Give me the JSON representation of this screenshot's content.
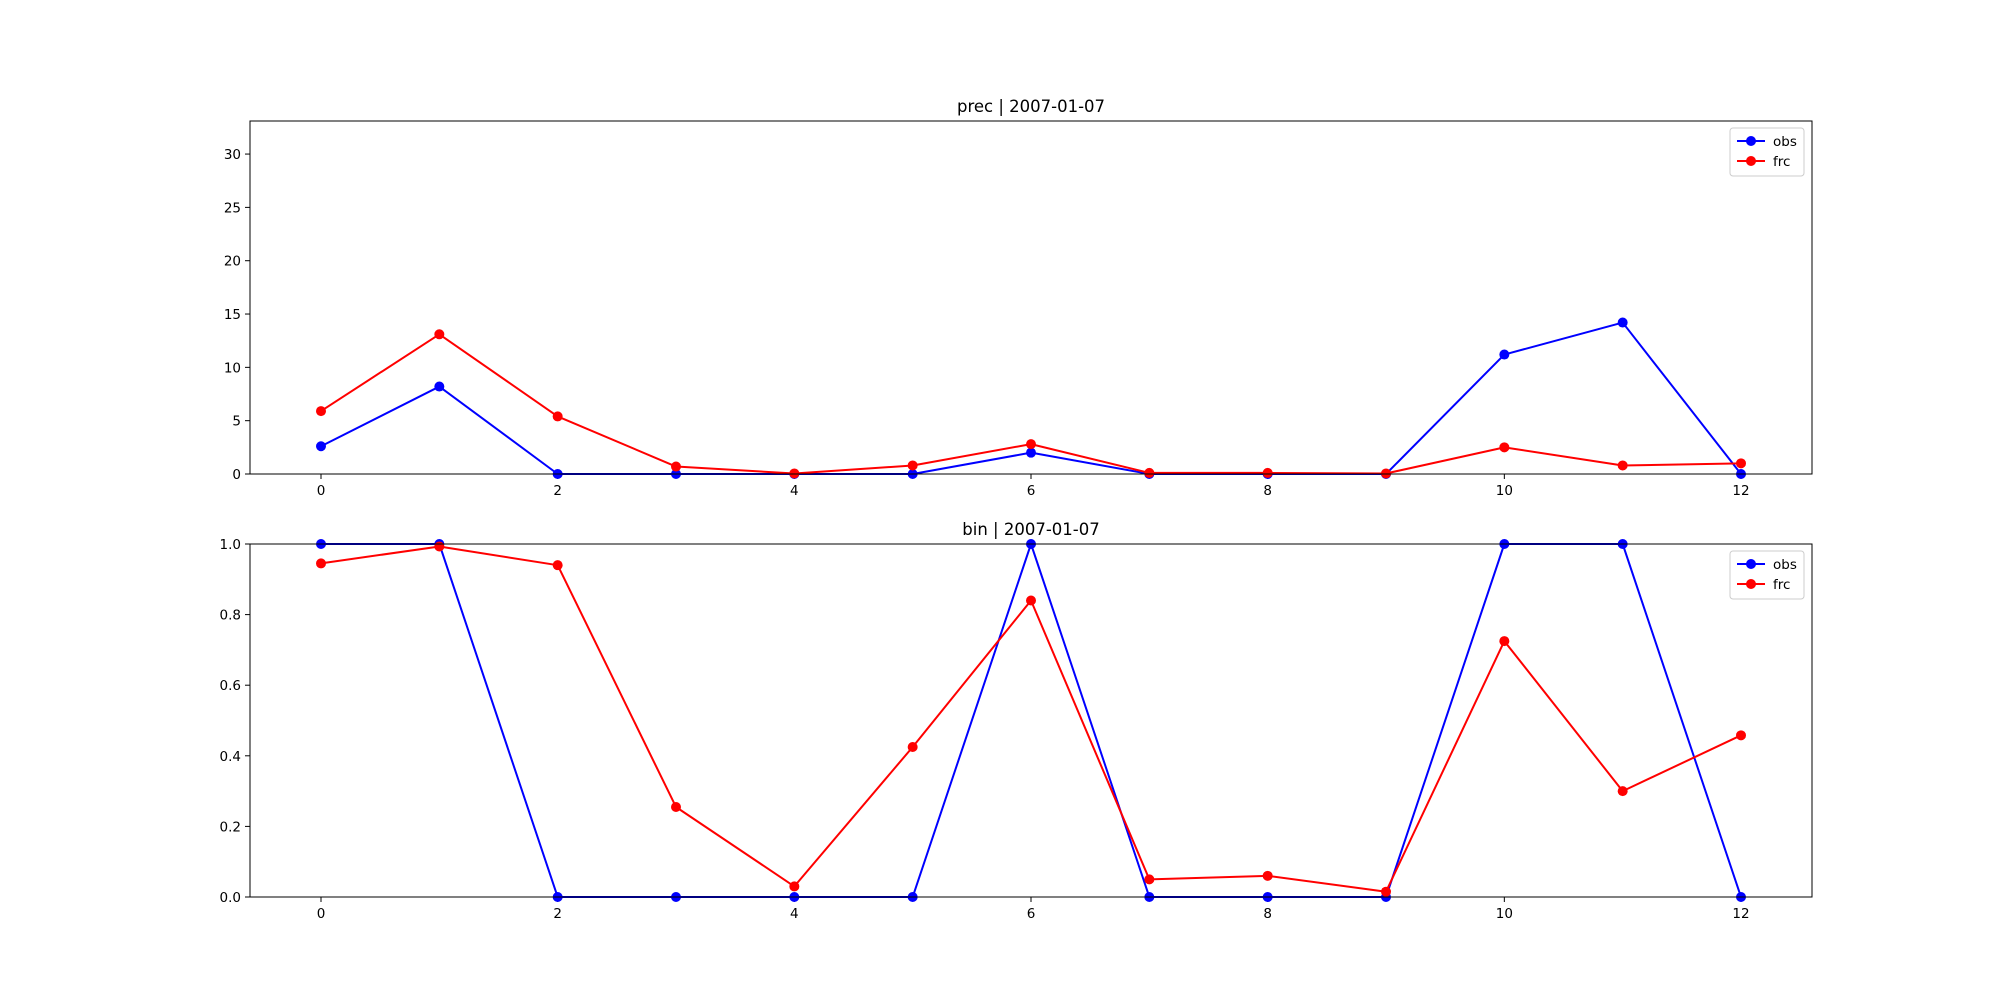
{
  "chart_data": [
    {
      "type": "line",
      "title": "prec | 2007-01-07",
      "xlabel": "",
      "ylabel": "",
      "xlim": [
        -0.6,
        12.6
      ],
      "ylim": [
        0,
        33.1
      ],
      "xticks": [
        0,
        2,
        4,
        6,
        8,
        10,
        12
      ],
      "yticks": [
        0,
        5,
        10,
        15,
        20,
        25,
        30
      ],
      "x": [
        0,
        1,
        2,
        3,
        4,
        5,
        6,
        7,
        8,
        9,
        10,
        11,
        12
      ],
      "series": [
        {
          "name": "obs",
          "color": "#0000ff",
          "marker": "circle",
          "values": [
            2.6,
            8.2,
            0,
            0,
            0,
            0,
            2.0,
            0,
            0,
            0,
            11.2,
            14.2,
            0
          ]
        },
        {
          "name": "frc",
          "color": "#ff0000",
          "marker": "circle",
          "values": [
            5.9,
            13.1,
            5.4,
            0.7,
            0.05,
            0.8,
            2.8,
            0.1,
            0.1,
            0.05,
            2.5,
            0.8,
            1.0
          ]
        }
      ],
      "grid": false,
      "legend": "top-right"
    },
    {
      "type": "line",
      "title": "bin | 2007-01-07",
      "xlabel": "",
      "ylabel": "",
      "xlim": [
        -0.6,
        12.6
      ],
      "ylim": [
        0,
        1.0
      ],
      "xticks": [
        0,
        2,
        4,
        6,
        8,
        10,
        12
      ],
      "yticks": [
        0.0,
        0.2,
        0.4,
        0.6,
        0.8,
        1.0
      ],
      "ytick_labels": [
        "0.0",
        "0.2",
        "0.4",
        "0.6",
        "0.8",
        "1.0"
      ],
      "x": [
        0,
        1,
        2,
        3,
        4,
        5,
        6,
        7,
        8,
        9,
        10,
        11,
        12
      ],
      "series": [
        {
          "name": "obs",
          "color": "#0000ff",
          "marker": "circle",
          "values": [
            1,
            1,
            0,
            0,
            0,
            0,
            1,
            0,
            0,
            0,
            1,
            1,
            0
          ]
        },
        {
          "name": "frc",
          "color": "#ff0000",
          "marker": "circle",
          "values": [
            0.945,
            0.993,
            0.94,
            0.255,
            0.03,
            0.425,
            0.84,
            0.05,
            0.06,
            0.015,
            0.725,
            0.3,
            0.458
          ]
        }
      ],
      "grid": false,
      "legend": "top-right"
    }
  ]
}
